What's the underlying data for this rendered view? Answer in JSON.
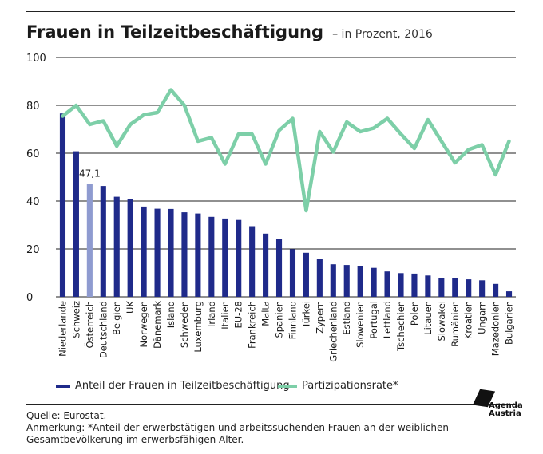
{
  "header": {
    "title": "Frauen in Teilzeitbeschäftigung",
    "subtitle": "– in Prozent, 2016"
  },
  "legend": {
    "bar_label": "Anteil der Frauen in Teilzeitbeschäftigung",
    "line_label": "Partizipationsrate*"
  },
  "footer": {
    "source": "Quelle: Eurostat.",
    "note": "Anmerkung: *Anteil der erwerbstätigen und arbeitssuchenden Frauen an der weiblichen Gesamtbevölkerung im erwerbsfähigen Alter."
  },
  "logo": {
    "line1": "Agenda",
    "line2": "Austria"
  },
  "colors": {
    "bar": "#1f2a8a",
    "bar_highlight": "#8f9bd0",
    "line": "#7dcfa8",
    "grid": "#222222"
  },
  "chart_data": {
    "type": "bar",
    "title": "Frauen in Teilzeitbeschäftigung",
    "subtitle": "– in Prozent, 2016",
    "xlabel": "",
    "ylabel": "",
    "ylim": [
      0,
      100
    ],
    "yticks": [
      0,
      20,
      40,
      60,
      80,
      100
    ],
    "grid": true,
    "legend_position": "bottom",
    "highlight_index": 2,
    "annotation": {
      "category": "Österreich",
      "text": "47,1"
    },
    "categories": [
      "Niederlande",
      "Schweiz",
      "Österreich",
      "Deutschland",
      "Belgien",
      "UK",
      "Norwegen",
      "Dänemark",
      "Island",
      "Schweden",
      "Luxemburg",
      "Irland",
      "Italien",
      "EU-28",
      "Frankreich",
      "Malta",
      "Spanien",
      "Finnland",
      "Türkei",
      "Zypern",
      "Griechenland",
      "Estland",
      "Slowenien",
      "Portugal",
      "Lettland",
      "Tschechien",
      "Polen",
      "Litauen",
      "Slowakei",
      "Rumänien",
      "Kroatien",
      "Ungarn",
      "Mazedonien",
      "Bulgarien"
    ],
    "series": [
      {
        "name": "Anteil der Frauen in Teilzeitbeschäftigung",
        "type": "bar",
        "values": [
          76.6,
          60.8,
          47.1,
          46.3,
          41.8,
          40.8,
          37.7,
          36.8,
          36.7,
          35.3,
          34.8,
          33.4,
          32.7,
          32.1,
          29.5,
          26.4,
          24.1,
          19.9,
          18.4,
          15.7,
          13.6,
          13.3,
          12.9,
          12.1,
          10.6,
          9.9,
          9.7,
          8.9,
          7.9,
          7.8,
          7.3,
          6.9,
          5.4,
          2.3
        ]
      },
      {
        "name": "Partizipationsrate*",
        "type": "line",
        "values": [
          75.5,
          80,
          72,
          73.5,
          63,
          72,
          76,
          77,
          86.5,
          80,
          65,
          66.5,
          55.5,
          68,
          68,
          55.5,
          69.5,
          74.5,
          36,
          69,
          60.5,
          73,
          69,
          70.5,
          74.5,
          68,
          62,
          74,
          65,
          56,
          61.5,
          63.5,
          51,
          65
        ]
      }
    ]
  }
}
